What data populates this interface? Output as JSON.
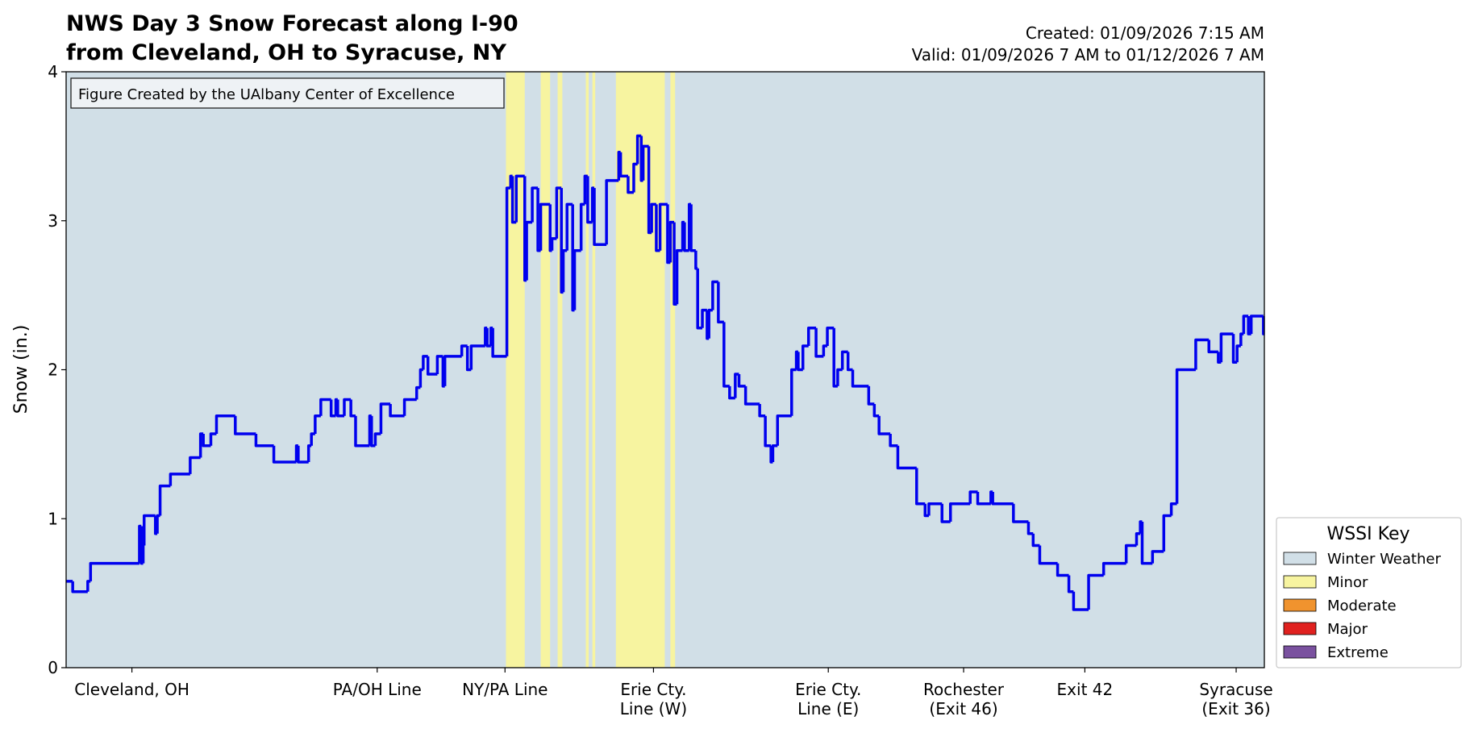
{
  "chart_data": {
    "type": "line",
    "title": [
      "NWS Day 3 Snow Forecast along I-90",
      "from Cleveland, OH to Syracuse, NY"
    ],
    "created": "Created: 01/09/2026 7:15 AM",
    "valid": "Valid: 01/09/2026 7 AM to 01/12/2026 7 AM",
    "annotation": "Figure Created by the UAlbany Center of Excellence",
    "ylabel": "Snow (in.)",
    "line_style": "steps-post",
    "color": "#0000ee",
    "x": [
      0,
      7,
      23,
      26,
      78,
      80,
      82,
      83,
      95,
      97,
      100,
      111,
      132,
      143,
      146,
      154,
      160,
      180,
      202,
      221,
      245,
      247,
      258,
      261,
      265,
      271,
      282,
      287,
      289,
      296,
      303,
      308,
      323,
      325,
      329,
      335,
      345,
      360,
      373,
      377,
      380,
      385,
      395,
      401,
      403,
      421,
      427,
      431,
      446,
      448,
      452,
      454,
      469,
      473,
      475,
      479,
      488,
      490,
      496,
      502,
      505,
      515,
      517,
      522,
      527,
      529,
      533,
      539,
      541,
      548,
      552,
      555,
      560,
      562,
      575,
      588,
      590,
      598,
      604,
      608,
      612,
      614,
      620,
      623,
      628,
      632,
      640,
      643,
      647,
      650,
      656,
      658,
      663,
      665,
      670,
      672,
      677,
      682,
      684,
      688,
      694,
      700,
      706,
      712,
      716,
      723,
      738,
      744,
      750,
      752,
      757,
      772,
      777,
      779,
      784,
      790,
      798,
      806,
      810,
      817,
      821,
      826,
      832,
      837,
      854,
      860,
      865,
      877,
      885,
      905,
      914,
      918,
      932,
      941,
      962,
      970,
      984,
      986,
      1008,
      1024,
      1029,
      1036,
      1055,
      1067,
      1072,
      1088,
      1104,
      1128,
      1139,
      1143,
      1145,
      1156,
      1168,
      1176,
      1182,
      1202,
      1216,
      1226,
      1229,
      1242,
      1246,
      1250,
      1253,
      1258,
      1261,
      1274
    ],
    "values": [
      0.58,
      0.51,
      0.58,
      0.7,
      0.95,
      0.7,
      0.82,
      1.02,
      0.9,
      1.02,
      1.22,
      1.3,
      1.41,
      1.57,
      1.49,
      1.57,
      1.69,
      1.57,
      1.49,
      1.38,
      1.49,
      1.38,
      1.49,
      1.57,
      1.69,
      1.8,
      1.69,
      1.8,
      1.69,
      1.8,
      1.69,
      1.49,
      1.69,
      1.49,
      1.57,
      1.77,
      1.69,
      1.8,
      1.88,
      2.0,
      2.09,
      1.97,
      2.09,
      1.89,
      2.09,
      2.16,
      2.0,
      2.16,
      2.28,
      2.16,
      2.28,
      2.09,
      3.22,
      3.3,
      2.99,
      3.3,
      2.6,
      2.99,
      3.22,
      2.8,
      3.11,
      2.8,
      2.88,
      3.22,
      2.52,
      2.8,
      3.11,
      2.4,
      2.8,
      3.11,
      3.3,
      2.99,
      3.22,
      2.84,
      3.27,
      3.46,
      3.3,
      3.19,
      3.38,
      3.57,
      3.27,
      3.5,
      2.92,
      3.11,
      2.8,
      3.11,
      2.72,
      2.99,
      2.44,
      2.8,
      2.99,
      2.8,
      3.11,
      2.8,
      2.68,
      2.28,
      2.4,
      2.21,
      2.4,
      2.59,
      2.32,
      1.89,
      1.81,
      1.97,
      1.89,
      1.77,
      1.69,
      1.49,
      1.38,
      1.49,
      1.69,
      2.0,
      2.12,
      2.0,
      2.16,
      2.28,
      2.09,
      2.16,
      2.28,
      1.89,
      2.0,
      2.12,
      2.0,
      1.89,
      1.77,
      1.69,
      1.57,
      1.49,
      1.34,
      1.1,
      1.02,
      1.1,
      0.98,
      1.1,
      1.18,
      1.1,
      1.18,
      1.1,
      0.98,
      0.9,
      0.82,
      0.7,
      0.62,
      0.51,
      0.39,
      0.62,
      0.7,
      0.82,
      0.9,
      0.98,
      0.7,
      0.78,
      1.02,
      1.1,
      2.0,
      2.2,
      2.12,
      2.05,
      2.24,
      2.05,
      2.16,
      2.24,
      2.36,
      2.24,
      2.36,
      2.24
    ],
    "xlim": [
      0,
      1275
    ],
    "xticks": [
      {
        "value": 70,
        "label": "Cleveland, OH"
      },
      {
        "value": 331,
        "label": "PA/OH Line"
      },
      {
        "value": 467,
        "label": "NY/PA Line"
      },
      {
        "value": 625,
        "label": "Erie Cty.\nLine (W)"
      },
      {
        "value": 811,
        "label": "Erie Cty.\nLine (E)"
      },
      {
        "value": 955,
        "label": "Rochester\n(Exit 46)"
      },
      {
        "value": 1084,
        "label": "Exit 42"
      },
      {
        "value": 1245,
        "label": "Syracuse\n(Exit 36)"
      }
    ],
    "ylim": [
      0,
      4
    ],
    "yticks": [
      0,
      1,
      2,
      3,
      4
    ],
    "wssi": {
      "title": "WSSI Key",
      "levels": [
        {
          "name": "Winter Weather",
          "color": "#d1dfe7"
        },
        {
          "name": "Minor",
          "color": "#f7f4a0"
        },
        {
          "name": "Moderate",
          "color": "#f0932e"
        },
        {
          "name": "Major",
          "color": "#e0211f"
        },
        {
          "name": "Extreme",
          "color": "#7a519f"
        }
      ],
      "background_level": 0,
      "bands": [
        {
          "start": 468,
          "end": 488,
          "level": 1
        },
        {
          "start": 505,
          "end": 515,
          "level": 1
        },
        {
          "start": 523,
          "end": 528,
          "level": 1
        },
        {
          "start": 553,
          "end": 556,
          "level": 1
        },
        {
          "start": 560,
          "end": 563,
          "level": 1
        },
        {
          "start": 585,
          "end": 637,
          "level": 1
        },
        {
          "start": 643,
          "end": 648,
          "level": 1
        }
      ]
    }
  }
}
